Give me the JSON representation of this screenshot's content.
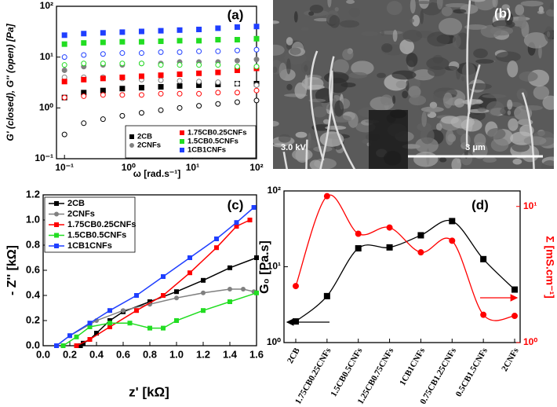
{
  "chart_data": [
    {
      "type": "scatter",
      "panel_label": "(a)",
      "xlabel": "ω [rad.s⁻¹]",
      "ylabel": "G' (closed), G'' (open) [Pa]",
      "xlog": true,
      "ylog": true,
      "xlim": [
        0.075,
        100
      ],
      "ylim": [
        0.1,
        100
      ],
      "xticks": [
        {
          "value": 0.1,
          "label": "10⁻¹"
        },
        {
          "value": 1,
          "label": "10⁰"
        },
        {
          "value": 10,
          "label": "10¹"
        },
        {
          "value": 100,
          "label": "10²"
        }
      ],
      "yticks": [
        {
          "value": 0.1,
          "label": "10⁻¹"
        },
        {
          "value": 1,
          "label": "10⁰"
        },
        {
          "value": 10,
          "label": "10¹"
        },
        {
          "value": 100,
          "label": "10²"
        }
      ],
      "x": [
        0.1,
        0.2,
        0.4,
        0.8,
        1.6,
        3.2,
        6.3,
        12.6,
        25,
        50,
        100
      ],
      "series": [
        {
          "name": "2CB",
          "color": "#000000",
          "marker": "square",
          "values": [
            1.6,
            2,
            2.2,
            2.4,
            2.5,
            2.6,
            2.7,
            2.8,
            2.9,
            3,
            3
          ],
          "loss_values": [
            0.3,
            0.5,
            0.6,
            0.7,
            0.8,
            0.9,
            1,
            1.1,
            1.2,
            1.3,
            1.4
          ]
        },
        {
          "name": "2CNFs",
          "color": "#808080",
          "marker": "circle",
          "values": [
            5.5,
            6.5,
            7,
            7,
            7.5,
            7.5,
            8,
            8,
            8,
            8.5,
            9
          ],
          "loss_values": [
            4,
            4,
            4,
            3.8,
            3.6,
            3.5,
            3.4,
            3.3,
            3.2,
            3,
            2.8
          ]
        },
        {
          "name": "1.75CB0.25CNFs",
          "color": "#ff0000",
          "marker": "square",
          "values": [
            3.3,
            3.6,
            3.8,
            4,
            4.2,
            4.4,
            4.6,
            4.8,
            5,
            5.5,
            6
          ],
          "loss_values": [
            1.6,
            1.7,
            1.8,
            1.8,
            1.8,
            1.9,
            1.9,
            1.9,
            2,
            2,
            2.2
          ]
        },
        {
          "name": "1.5CB0.5CNFs",
          "color": "#22dd22",
          "marker": "square",
          "values": [
            18,
            19,
            19.5,
            20,
            20,
            20.5,
            21,
            21,
            22,
            22,
            23
          ],
          "loss_values": [
            7,
            7.5,
            7.5,
            7.5,
            7.5,
            7,
            7,
            7,
            7,
            6.5,
            6.5
          ]
        },
        {
          "name": "1CB1CNFs",
          "color": "#1f3fff",
          "marker": "square",
          "values": [
            27,
            29,
            30,
            31,
            32,
            33,
            34,
            35,
            37,
            39,
            40
          ],
          "loss_values": [
            10,
            11,
            11.5,
            12,
            12,
            12.5,
            12.5,
            13,
            13,
            13.5,
            14
          ]
        }
      ]
    },
    {
      "type": "line",
      "panel_label": "(c)",
      "xlabel": "z' [kΩ]",
      "ylabel": "- Z'' [kΩ]",
      "xlim": [
        0,
        1.6
      ],
      "ylim": [
        0,
        1.2
      ],
      "xticks": [
        {
          "value": 0,
          "label": "0.0"
        },
        0.2,
        0.4,
        0.6,
        0.8,
        {
          "value": 1,
          "label": "1.0"
        },
        1.2,
        1.4,
        1.6
      ],
      "yticks": [
        {
          "value": 0,
          "label": "0.0"
        },
        0.2,
        0.4,
        0.6,
        0.8,
        {
          "value": 1,
          "label": "1.0"
        },
        1.2
      ],
      "series": [
        {
          "name": "2CB",
          "color": "#000000",
          "marker": "square",
          "x": [
            0.28,
            0.3,
            0.35,
            0.4,
            0.5,
            0.6,
            0.8,
            1.0,
            1.2,
            1.4,
            1.6
          ],
          "values": [
            0,
            0.02,
            0.05,
            0.1,
            0.2,
            0.27,
            0.35,
            0.43,
            0.52,
            0.62,
            0.7
          ]
        },
        {
          "name": "2CNFs",
          "color": "#808080",
          "marker": "circle",
          "x": [
            0.1,
            0.2,
            0.4,
            0.6,
            0.8,
            1.0,
            1.2,
            1.4,
            1.5,
            1.58
          ],
          "values": [
            0,
            0.08,
            0.2,
            0.28,
            0.33,
            0.38,
            0.42,
            0.45,
            0.45,
            0.43
          ]
        },
        {
          "name": "1.75CB0.25CNFs",
          "color": "#ff0000",
          "marker": "square",
          "x": [
            0.25,
            0.35,
            0.5,
            0.7,
            0.9,
            1.1,
            1.3,
            1.45,
            1.55
          ],
          "values": [
            0,
            0.05,
            0.15,
            0.28,
            0.4,
            0.58,
            0.78,
            0.95,
            1.0
          ]
        },
        {
          "name": "1.5CB0.5CNFs",
          "color": "#22dd22",
          "marker": "square",
          "x": [
            0.15,
            0.25,
            0.35,
            0.5,
            0.65,
            0.8,
            0.9,
            1.0,
            1.2,
            1.4,
            1.6
          ],
          "values": [
            0,
            0.07,
            0.15,
            0.18,
            0.18,
            0.14,
            0.14,
            0.2,
            0.28,
            0.35,
            0.42
          ]
        },
        {
          "name": "1CB1CNFs",
          "color": "#1f3fff",
          "marker": "square",
          "x": [
            0.1,
            0.2,
            0.35,
            0.5,
            0.7,
            0.9,
            1.1,
            1.3,
            1.45,
            1.58
          ],
          "values": [
            0,
            0.08,
            0.18,
            0.28,
            0.4,
            0.55,
            0.7,
            0.85,
            0.98,
            1.1
          ]
        }
      ]
    },
    {
      "type": "combo",
      "panel_label": "(d)",
      "ylabel": "G₀ [Pa.s]",
      "y2label": "Σ [mS.cm⁻¹]",
      "ylog": true,
      "y2log": true,
      "ylim": [
        1,
        100
      ],
      "y2lim": [
        1,
        13
      ],
      "yticks": [
        {
          "value": 1,
          "label": "10⁰"
        },
        {
          "value": 10,
          "label": "10¹"
        },
        {
          "value": 100,
          "label": "10²"
        }
      ],
      "y2ticks": [
        {
          "value": 1,
          "label": "10⁰"
        },
        {
          "value": 10,
          "label": "10¹"
        }
      ],
      "y2color": "#ff0000",
      "categories": [
        "2CB",
        "1.75CB0.25CNFs",
        "1.5CB0.5CNFs",
        "1.25CB0.75CNFs",
        "1CB1CNFs",
        "0.75CB1.25CNFs",
        "0.5CB1.5CNFs",
        "2CNFs"
      ],
      "series": [
        {
          "color": "#000000",
          "marker": "square",
          "axis": "y",
          "values": [
            1.9,
            4.1,
            17.5,
            18,
            26,
            40,
            12.6,
            5
          ]
        },
        {
          "color": "#ff0000",
          "marker": "circle",
          "axis": "y2",
          "values": [
            2.6,
            11.9,
            6.3,
            7,
            4.6,
            5.6,
            1.6,
            1.57
          ]
        }
      ]
    }
  ],
  "image_panel": {
    "label": "(b)",
    "voltage": "3.0 kV",
    "scale_bar": "3 μm"
  }
}
